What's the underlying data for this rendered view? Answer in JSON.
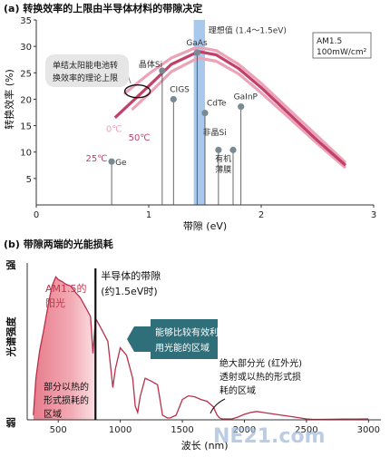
{
  "colors": {
    "curve_dark": "#c2406a",
    "curve_light": "#eba3b8",
    "band": "#a9c9ec",
    "label_box": "#e6e6e6",
    "teal_box": "#2e6f7a",
    "red_fill": "#e07a8a",
    "red_label": "#c8324a",
    "spectrum_line": "#b8304a",
    "marker": "#7a8a92"
  },
  "panel_a": {
    "title": "(a) 转换效率的上限由半导体材料的带隙决定",
    "label_box_text": [
      "单结太阳能电池转",
      "换效率的理论上限"
    ],
    "ideal_label": "理想值 (1.4～1.5eV)",
    "condition_box": [
      "AM1.5",
      "100mW/cm²"
    ],
    "temp_labels": [
      "0℃",
      "50℃",
      "25℃"
    ],
    "amorphous_label": "非晶Si",
    "organic_label": [
      "有机",
      "薄膜"
    ]
  },
  "panel_b": {
    "title": "(b) 带隙两端的光能损耗",
    "red_label": [
      "AM1.5的",
      "阳光"
    ],
    "bandgap_label": [
      "半导体的带隙",
      "(约1.5eV时)"
    ],
    "teal_box_text": [
      "能够比较有效利",
      "用光能的区域"
    ],
    "left_loss_text": [
      "部分以热的",
      "形式损耗的",
      "区域"
    ],
    "right_loss_text": [
      "绝大部分光 (红外光)",
      "透射或以热的形式损",
      "耗的区域"
    ],
    "watermark": "NE21.com"
  },
  "chart_data": [
    {
      "type": "line",
      "title": "转换效率的上限由半导体材料的带隙决定",
      "xlabel": "带隙 (eV)",
      "ylabel": "转换效率 (%)",
      "xlim": [
        0,
        3
      ],
      "ylim": [
        0,
        35
      ],
      "xticks": [
        0,
        1,
        2,
        3
      ],
      "yticks": [
        5,
        10,
        15,
        20,
        25,
        30,
        35
      ],
      "ideal_band": [
        1.4,
        1.5
      ],
      "series": [
        {
          "name": "0℃",
          "x": [
            0.78,
            1.0,
            1.2,
            1.4,
            1.45,
            1.6,
            1.8,
            2.0,
            2.2,
            2.5,
            2.75
          ],
          "y": [
            21.0,
            24.8,
            27.8,
            29.6,
            29.8,
            29.2,
            26.6,
            23.0,
            19.0,
            13.0,
            8.0
          ]
        },
        {
          "name": "25℃",
          "x": [
            0.7,
            1.0,
            1.2,
            1.4,
            1.45,
            1.6,
            1.8,
            2.0,
            2.2,
            2.5,
            2.75
          ],
          "y": [
            16.5,
            22.5,
            26.6,
            28.6,
            29.0,
            28.4,
            25.8,
            22.2,
            18.2,
            12.2,
            7.5
          ]
        },
        {
          "name": "50℃",
          "x": [
            0.85,
            1.0,
            1.2,
            1.4,
            1.45,
            1.6,
            1.8,
            2.0,
            2.2,
            2.5,
            2.75
          ],
          "y": [
            18.0,
            21.0,
            25.2,
            27.4,
            27.8,
            27.2,
            24.8,
            21.2,
            17.4,
            11.6,
            7.0
          ]
        }
      ],
      "materials": [
        {
          "name": "Ge",
          "x": 0.67,
          "y": 8.2
        },
        {
          "name": "晶体Si",
          "x": 1.12,
          "y": 25.4
        },
        {
          "name": "CIGS",
          "x": 1.22,
          "y": 20.0
        },
        {
          "name": "GaAs",
          "x": 1.43,
          "y": 28.8
        },
        {
          "name": "CdTe",
          "x": 1.5,
          "y": 17.4
        },
        {
          "name": "GaInP",
          "x": 1.82,
          "y": 18.6
        },
        {
          "name": "非晶Si/有机薄膜",
          "x": 1.75,
          "y": 10.4
        },
        {
          "name": "",
          "x": 1.62,
          "y": 10.4
        }
      ],
      "annotations": [
        "理想值 (1.4～1.5eV)",
        "AM1.5 100mW/cm²",
        "单结太阳能电池转换效率的理论上限"
      ]
    },
    {
      "type": "area",
      "title": "带隙两端的光能损耗",
      "xlabel": "波长 (nm)",
      "ylabel": "光谱强度",
      "ylabel_top": "强",
      "ylabel_bottom": "弱",
      "xlim": [
        250,
        3100
      ],
      "ylim": [
        0,
        1.7
      ],
      "xticks": [
        500,
        1000,
        1500,
        2000,
        2500,
        3000
      ],
      "bandgap_wavelength": 800,
      "series": [
        {
          "name": "AM1.5的阳光",
          "x": [
            300,
            320,
            350,
            380,
            400,
            430,
            450,
            480,
            500,
            530,
            560,
            600,
            640,
            680,
            720,
            760,
            780,
            800,
            850,
            900,
            920,
            940,
            960,
            1000,
            1050,
            1100,
            1120,
            1140,
            1160,
            1200,
            1250,
            1300,
            1340,
            1380,
            1400,
            1450,
            1500,
            1550,
            1600,
            1650,
            1700,
            1750,
            1780,
            1800,
            1820,
            1850,
            1900,
            1950,
            2000,
            2050,
            2100,
            2150,
            2200,
            2300,
            2400,
            2500,
            2550,
            2600,
            2700,
            2800,
            2900,
            3000
          ],
          "y": [
            0.05,
            0.45,
            0.75,
            0.95,
            1.1,
            1.32,
            1.45,
            1.55,
            1.52,
            1.5,
            1.47,
            1.45,
            1.38,
            1.32,
            1.22,
            1.12,
            0.72,
            1.1,
            0.98,
            0.85,
            0.6,
            0.35,
            0.55,
            0.78,
            0.7,
            0.45,
            0.15,
            0.08,
            0.25,
            0.45,
            0.42,
            0.38,
            0.05,
            0.02,
            0.02,
            0.05,
            0.22,
            0.26,
            0.25,
            0.22,
            0.2,
            0.14,
            0.05,
            0.02,
            0.01,
            0.01,
            0.01,
            0.03,
            0.06,
            0.08,
            0.09,
            0.08,
            0.07,
            0.05,
            0.03,
            0.01,
            0.005,
            0.005,
            0.006,
            0.008,
            0.009,
            0.01
          ]
        }
      ],
      "annotations": [
        "半导体的带隙 (约1.5eV时)",
        "能够比较有效利用光能的区域",
        "部分以热的形式损耗的区域",
        "绝大部分光 (红外光) 透射或以热的形式损耗的区域"
      ]
    }
  ]
}
